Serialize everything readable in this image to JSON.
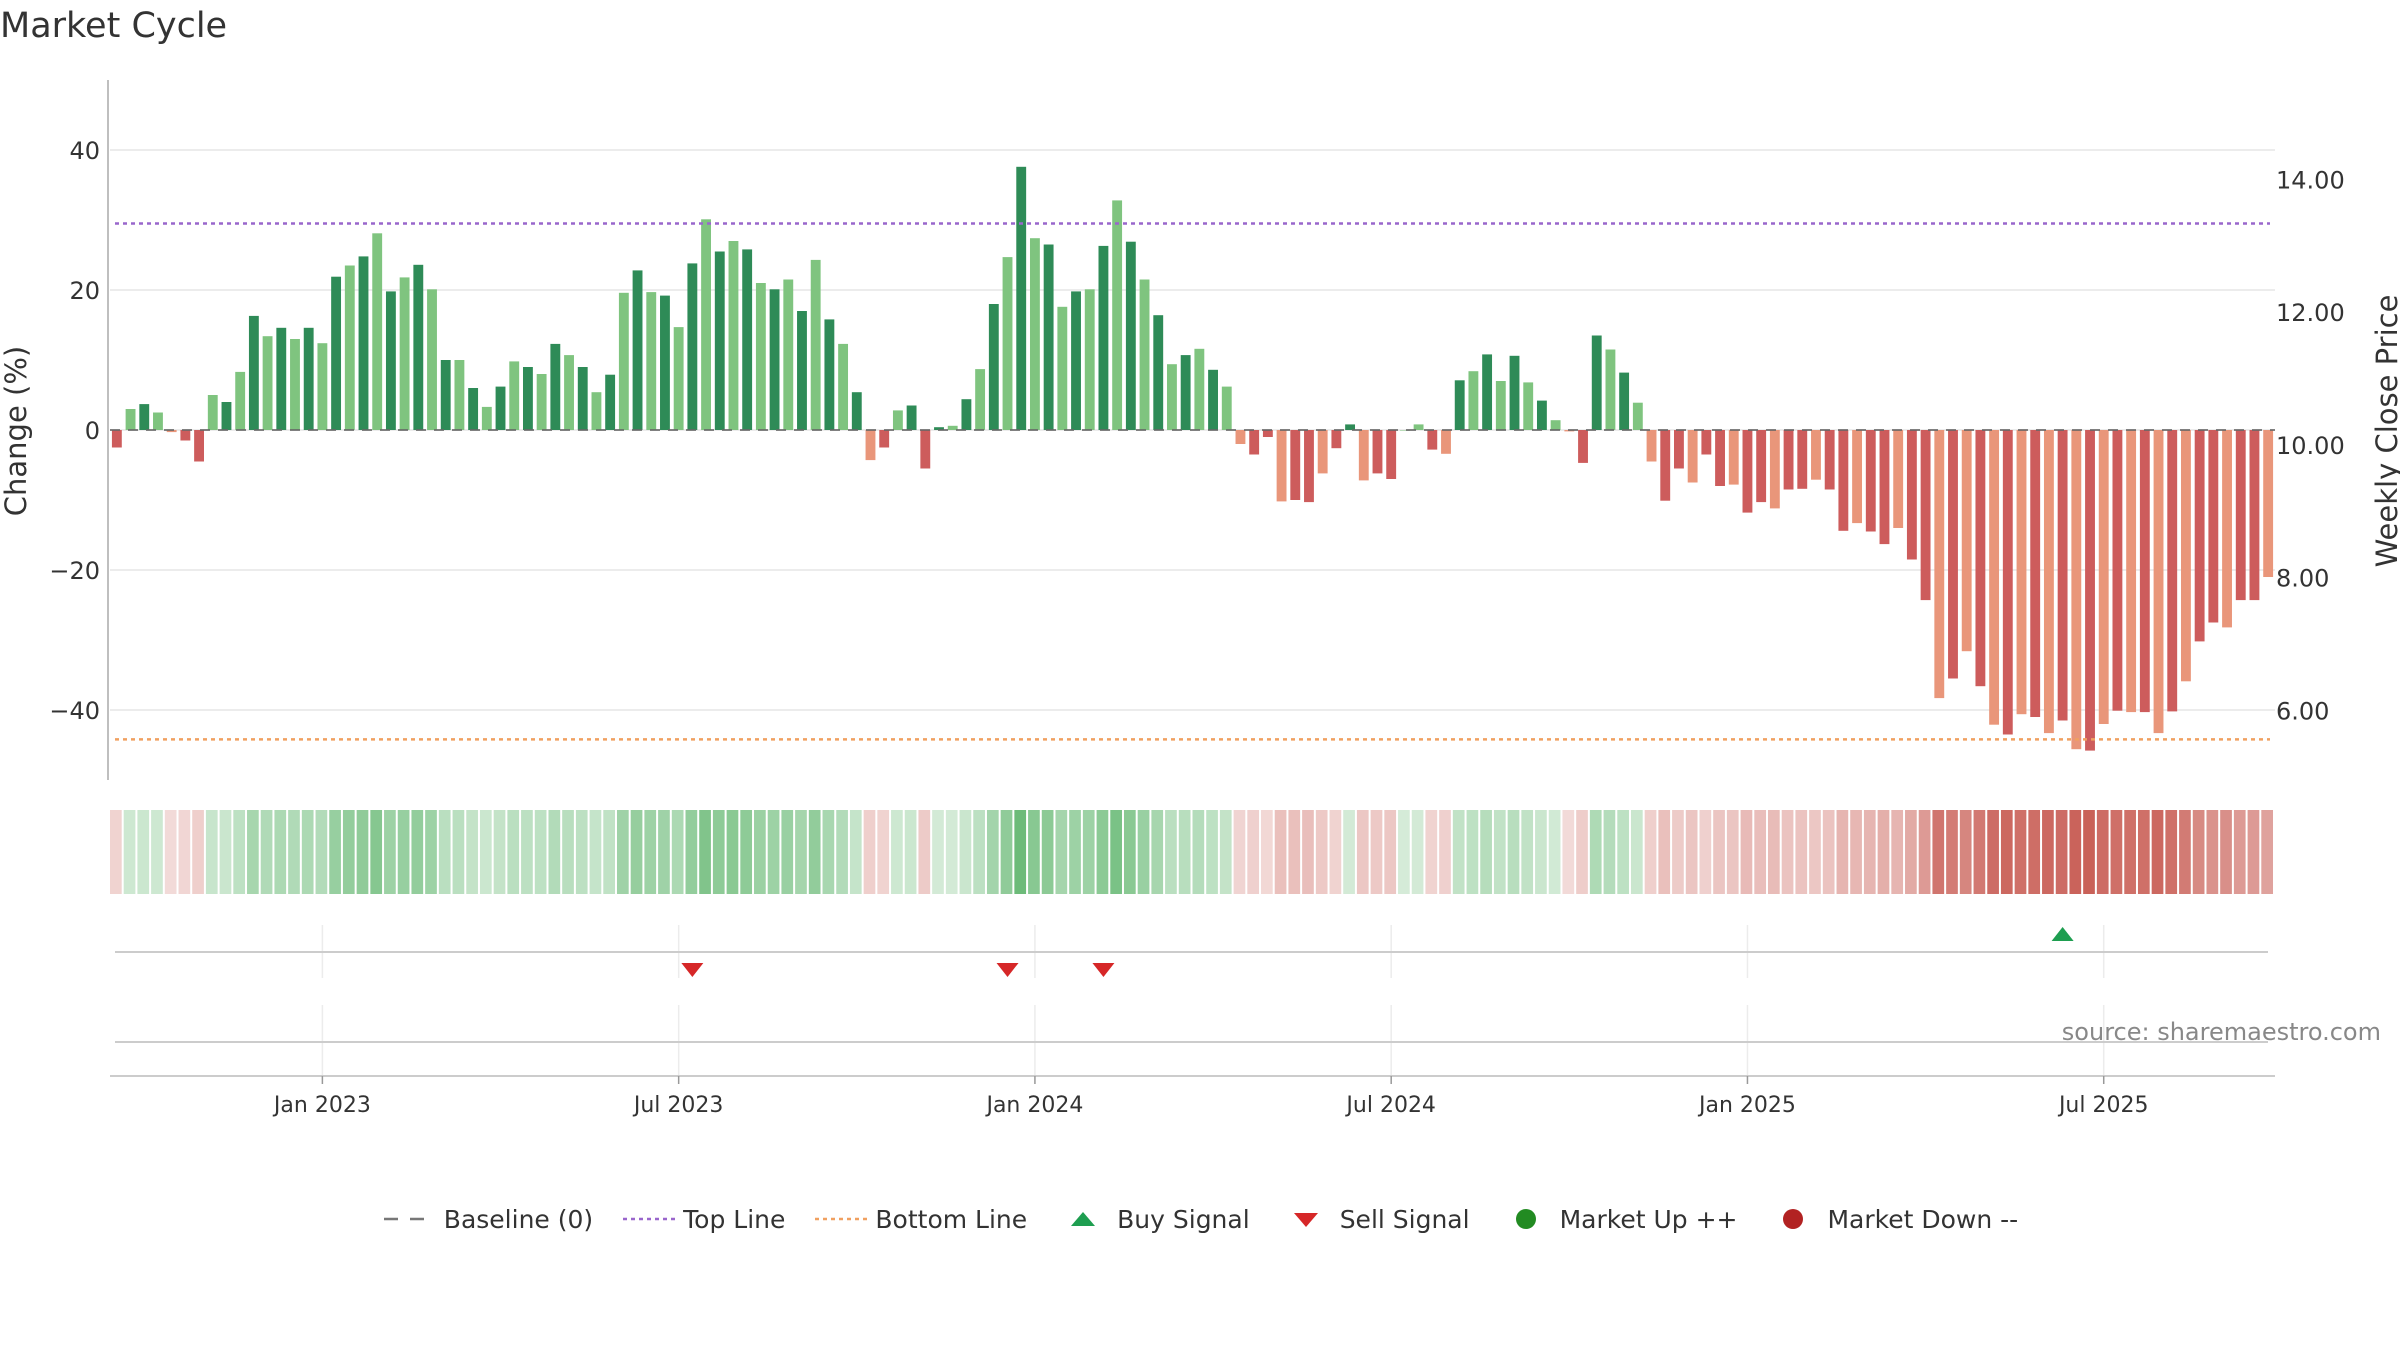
{
  "chart_data": {
    "type": "bar",
    "title": "Market Cycle",
    "ylabel": "Change (%)",
    "y2label": "Weekly Close Price",
    "ylim": [
      -50,
      50
    ],
    "y2lim": [
      4.95,
      15.5
    ],
    "yticks": [
      40,
      20,
      0,
      -20,
      -40
    ],
    "ytick_labels": [
      "40",
      "20",
      "0",
      "−20",
      "−40"
    ],
    "y2ticks": [
      14,
      12,
      10,
      8,
      6
    ],
    "y2tick_labels": [
      "14.00",
      "12.00",
      "10.00",
      "8.00",
      "6.00"
    ],
    "xticks": [
      "Jan 2023",
      "Jul 2023",
      "Jan 2024",
      "Jul 2024",
      "Jan 2025",
      "Jul 2025"
    ],
    "xtick_week_index": [
      15,
      41,
      67,
      93,
      119,
      145
    ],
    "top_line": 29.5,
    "bottom_line": -44.2,
    "baseline": 0,
    "values": [
      -2.5,
      3,
      3.7,
      2.5,
      -0.3,
      -1.5,
      -4.5,
      5,
      4,
      8.3,
      16.3,
      13.4,
      14.6,
      13,
      14.6,
      12.4,
      21.9,
      23.5,
      24.8,
      28.1,
      19.8,
      21.8,
      23.6,
      20.1,
      10,
      10,
      6,
      3.3,
      6.2,
      9.8,
      9,
      8,
      12.3,
      10.7,
      9,
      5.4,
      7.9,
      19.6,
      22.8,
      19.7,
      19.2,
      14.7,
      23.8,
      30.1,
      25.5,
      27,
      25.8,
      21,
      20.1,
      21.5,
      17,
      24.3,
      15.8,
      12.3,
      5.4,
      -4.3,
      -2.5,
      2.8,
      3.5,
      -5.5,
      0.4,
      0.6,
      4.4,
      8.7,
      18,
      24.7,
      37.6,
      27.4,
      26.5,
      17.6,
      19.8,
      20.1,
      26.3,
      32.8,
      26.9,
      21.5,
      16.4,
      9.4,
      10.7,
      11.6,
      8.6,
      6.2,
      -2,
      -3.5,
      -1,
      -10.2,
      -10,
      -10.3,
      -6.2,
      -2.6,
      0.8,
      -7.2,
      -6.2,
      -7,
      0,
      0.8,
      -2.8,
      -3.4,
      7.1,
      8.4,
      10.8,
      7,
      10.6,
      6.8,
      4.2,
      1.4,
      -0.2,
      -4.7,
      13.5,
      11.5,
      8.2,
      3.9,
      -4.5,
      -10.1,
      -5.5,
      -7.5,
      -3.5,
      -8,
      -7.8,
      -11.8,
      -10.3,
      -11.2,
      -8.5,
      -8.4,
      -7.1,
      -8.5,
      -14.4,
      -13.3,
      -14.5,
      -16.3,
      -14,
      -18.5,
      -24.3,
      -38.3,
      -35.5,
      -31.6,
      -36.6,
      -42.1,
      -43.5,
      -40.6,
      -41,
      -43.3,
      -41.5,
      -45.6,
      -45.8,
      -42,
      -40.1,
      -40.3,
      -40.3,
      -43.3,
      -40.2,
      -35.9,
      -30.2,
      -27.5,
      -28.2,
      -24.3,
      -24.3,
      -21
    ],
    "buy_signals": [
      142
    ],
    "sell_signals": [
      42,
      65,
      72
    ],
    "colors": {
      "up_strong": "#2e8b57",
      "up_light": "#7fc47f",
      "down_strong": "#cd5c5c",
      "down_light": "#e9967a",
      "top_line": "#9966cc",
      "bottom_line": "#f0a060",
      "buy": "#1e9e50",
      "sell": "#d62728",
      "market_up": "#228b22",
      "market_down": "#b22222"
    },
    "legend": [
      {
        "label": "Baseline (0)",
        "symbol": "dash",
        "color": "#777777"
      },
      {
        "label": "Top Line",
        "symbol": "dot",
        "color": "#9966cc"
      },
      {
        "label": "Bottom Line",
        "symbol": "dot",
        "color": "#f0a060"
      },
      {
        "label": "Buy Signal",
        "symbol": "triangle-up",
        "color": "#1e9e50"
      },
      {
        "label": "Sell Signal",
        "symbol": "triangle-down",
        "color": "#d62728"
      },
      {
        "label": "Market Up ++",
        "symbol": "circle",
        "color": "#228b22"
      },
      {
        "label": "Market Down --",
        "symbol": "circle",
        "color": "#b22222"
      }
    ],
    "source": "source: sharemaestro.com"
  }
}
